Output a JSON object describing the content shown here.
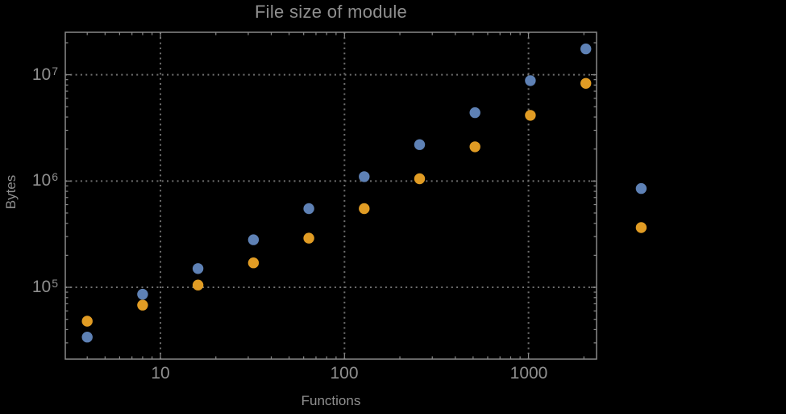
{
  "colors": {
    "background": "#000000",
    "frame": "#898989",
    "grid": "#6f6f6f",
    "tick": "#898989",
    "text": "#8f8f8f",
    "series_blue": "#5e81b5",
    "series_orange": "#e19c24"
  },
  "chart_data": {
    "type": "scatter",
    "title": "File size of module",
    "xlabel": "Functions",
    "ylabel": "Bytes",
    "x_scale": "log",
    "y_scale": "log",
    "grid": true,
    "legend": null,
    "x_range": [
      3.04,
      2343
    ],
    "y_range": [
      21100,
      25100000
    ],
    "x_ticks": [
      {
        "value": 10,
        "label": "10"
      },
      {
        "value": 100,
        "label": "100"
      },
      {
        "value": 1000,
        "label": "1000"
      }
    ],
    "y_ticks": [
      {
        "value": 100000,
        "base": "10",
        "exp": "5"
      },
      {
        "value": 1000000,
        "base": "10",
        "exp": "6"
      },
      {
        "value": 10000000,
        "base": "10",
        "exp": "7"
      }
    ],
    "x": [
      4,
      8,
      16,
      32,
      64,
      128,
      256,
      512,
      1024,
      2048,
      4096
    ],
    "series": [
      {
        "name": "blue",
        "color": "#5e81b5",
        "values": [
          34000,
          86000,
          150000,
          280000,
          550000,
          1100000,
          2200000,
          4400000,
          8800000,
          17500000,
          850000
        ]
      },
      {
        "name": "orange",
        "color": "#e19c24",
        "values": [
          48000,
          68000,
          105000,
          170000,
          290000,
          550000,
          1050000,
          2100000,
          4150000,
          8300000,
          365000
        ]
      }
    ]
  }
}
